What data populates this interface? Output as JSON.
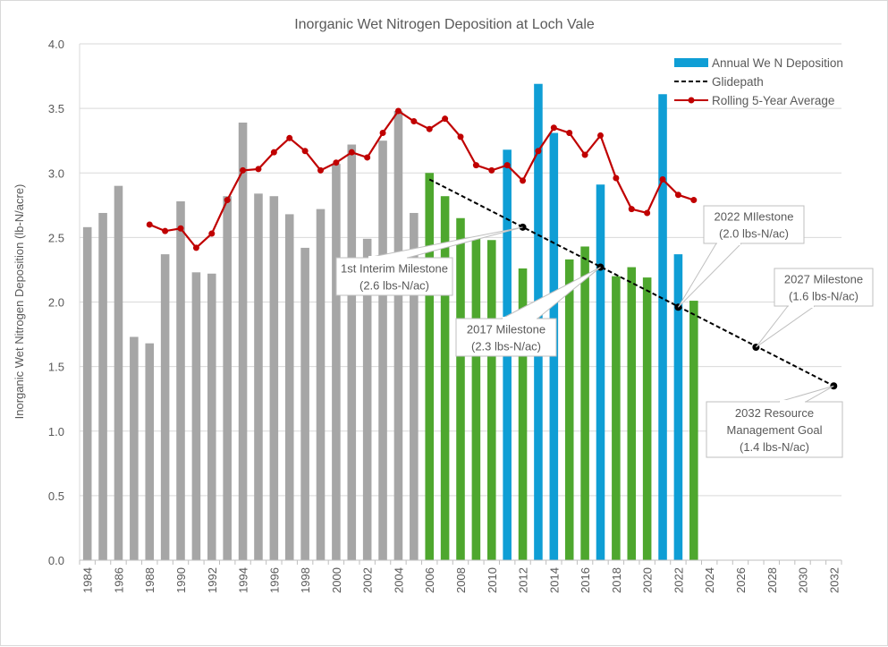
{
  "chart_data": {
    "type": "bar",
    "title": "Inorganic Wet Nitrogen Deposition at Loch Vale",
    "xlabel": "",
    "ylabel": "Inorganic Wet Nitrogen Deposition (lb-N/acre)",
    "ylim": [
      0,
      4.0
    ],
    "yticks": [
      "0.0",
      "0.5",
      "1.0",
      "1.5",
      "2.0",
      "2.5",
      "3.0",
      "3.5",
      "4.0"
    ],
    "ytick_values": [
      0,
      0.5,
      1.0,
      1.5,
      2.0,
      2.5,
      3.0,
      3.5,
      4.0
    ],
    "grid": true,
    "categories": [
      1984,
      1985,
      1986,
      1987,
      1988,
      1989,
      1990,
      1991,
      1992,
      1993,
      1994,
      1995,
      1996,
      1997,
      1998,
      1999,
      2000,
      2001,
      2002,
      2003,
      2004,
      2005,
      2006,
      2007,
      2008,
      2009,
      2010,
      2011,
      2012,
      2013,
      2014,
      2015,
      2016,
      2017,
      2018,
      2019,
      2020,
      2021,
      2022,
      2023,
      2024,
      2025,
      2026,
      2027,
      2028,
      2029,
      2030,
      2031,
      2032
    ],
    "xtick_labels": [
      "1984",
      "1986",
      "1988",
      "1990",
      "1992",
      "1994",
      "1996",
      "1998",
      "2000",
      "2002",
      "2004",
      "2006",
      "2008",
      "2010",
      "2012",
      "2014",
      "2016",
      "2018",
      "2020",
      "2022",
      "2024",
      "2026",
      "2028",
      "2030",
      "2032"
    ],
    "series": [
      {
        "name": "Annual We N Deposition",
        "type": "bar",
        "legend_color": "#0f9ed5",
        "values": [
          2.58,
          2.69,
          2.9,
          1.73,
          1.68,
          2.37,
          2.78,
          2.23,
          2.22,
          2.82,
          3.39,
          2.84,
          2.82,
          2.68,
          2.42,
          2.72,
          3.07,
          3.22,
          2.49,
          3.25,
          3.48,
          2.69,
          3.0,
          2.82,
          2.65,
          2.5,
          2.48,
          3.18,
          2.26,
          3.69,
          3.31,
          2.33,
          2.43,
          2.91,
          2.2,
          2.27,
          2.19,
          3.61,
          2.37,
          2.01,
          null,
          null,
          null,
          null,
          null,
          null,
          null,
          null,
          null
        ],
        "bar_colors": [
          "gray",
          "gray",
          "gray",
          "gray",
          "gray",
          "gray",
          "gray",
          "gray",
          "gray",
          "gray",
          "gray",
          "gray",
          "gray",
          "gray",
          "gray",
          "gray",
          "gray",
          "gray",
          "gray",
          "gray",
          "gray",
          "gray",
          "green",
          "green",
          "green",
          "green",
          "green",
          "blue",
          "green",
          "blue",
          "blue",
          "green",
          "green",
          "blue",
          "green",
          "green",
          "green",
          "blue",
          "blue",
          "green",
          null,
          null,
          null,
          null,
          null,
          null,
          null,
          null,
          null
        ]
      },
      {
        "name": "Glidepath",
        "type": "line",
        "style": "dashed",
        "color": "#000000",
        "points": [
          {
            "x": 2006,
            "y": 2.95
          },
          {
            "x": 2012,
            "y": 2.58
          },
          {
            "x": 2017,
            "y": 2.27
          },
          {
            "x": 2022,
            "y": 1.96
          },
          {
            "x": 2027,
            "y": 1.65
          },
          {
            "x": 2032,
            "y": 1.35
          }
        ],
        "markers": [
          2012,
          2017,
          2022,
          2027,
          2032
        ]
      },
      {
        "name": "Rolling 5-Year Average",
        "type": "line",
        "color": "#c00000",
        "x": [
          1988,
          1989,
          1990,
          1991,
          1992,
          1993,
          1994,
          1995,
          1996,
          1997,
          1998,
          1999,
          2000,
          2001,
          2002,
          2003,
          2004,
          2005,
          2006,
          2007,
          2008,
          2009,
          2010,
          2011,
          2012,
          2013,
          2014,
          2015,
          2016,
          2017,
          2018,
          2019,
          2020,
          2021,
          2022,
          2023
        ],
        "values": [
          2.6,
          2.55,
          2.57,
          2.42,
          2.53,
          2.79,
          3.02,
          3.03,
          3.16,
          3.27,
          3.17,
          3.02,
          3.08,
          3.16,
          3.12,
          3.31,
          3.48,
          3.4,
          3.34,
          3.42,
          3.28,
          3.06,
          3.02,
          3.06,
          2.94,
          3.17,
          3.35,
          3.31,
          3.14,
          3.29,
          2.96,
          2.72,
          2.69,
          2.95,
          2.83,
          2.79
        ]
      }
    ],
    "colors": {
      "gray": "#a6a6a6",
      "green": "#4ea72e",
      "blue": "#0f9ed5",
      "red": "#c00000",
      "grid": "#d9d9d9",
      "text": "#595959"
    },
    "legend": {
      "placement": "top-right",
      "entries": [
        "Annual We N Deposition",
        "Glidepath",
        "Rolling 5-Year Average"
      ]
    },
    "annotations": [
      {
        "target_x": 2012,
        "target_y": 2.58,
        "lines": [
          "1st Interim Milestone",
          "(2.6 lbs-N/ac)"
        ]
      },
      {
        "target_x": 2017,
        "target_y": 2.27,
        "lines": [
          "2017 Milestone",
          "(2.3 lbs-N/ac)"
        ]
      },
      {
        "target_x": 2022,
        "target_y": 1.96,
        "lines": [
          "2022 MIlestone",
          "(2.0 lbs-N/ac)"
        ]
      },
      {
        "target_x": 2027,
        "target_y": 1.65,
        "lines": [
          "2027 Milestone",
          "(1.6 lbs-N/ac)"
        ]
      },
      {
        "target_x": 2032,
        "target_y": 1.35,
        "lines": [
          "2032 Resource",
          "Management Goal",
          "(1.4 lbs-N/ac)"
        ]
      }
    ]
  }
}
